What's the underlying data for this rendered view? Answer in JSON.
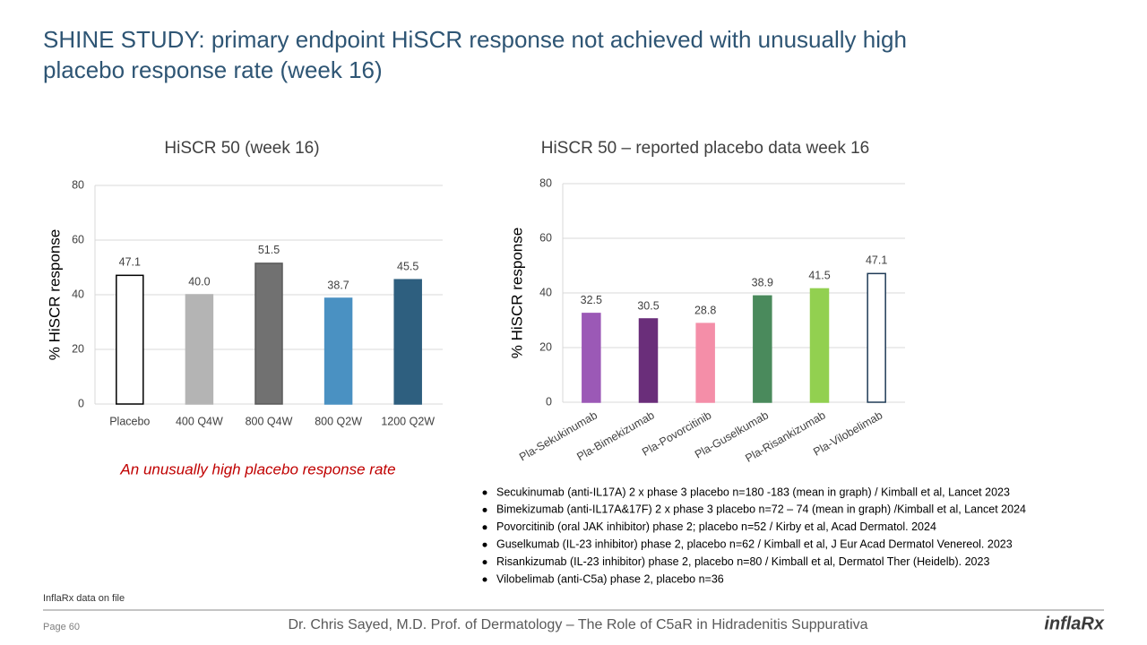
{
  "slide": {
    "title": "SHINE STUDY: primary endpoint HiSCR response not achieved with unusually high placebo response rate (week 16)",
    "callout": "An unusually high placebo response rate",
    "notes": [
      "Secukinumab (anti-IL17A) 2 x phase 3 placebo n=180 -183 (mean in graph) / Kimball et al, Lancet 2023",
      "Bimekizumab (anti-IL17A&17F) 2 x phase 3 placebo n=72 – 74 (mean in graph) /Kimball et al, Lancet 2024",
      "Povorcitinib (oral JAK inhibitor) phase 2; placebo n=52 / Kirby et al,  Acad Dermatol. 2024",
      "Guselkumab (IL-23 inhibitor) phase 2, placebo n=62 / Kimball et al,  J Eur Acad Dermatol Venereol. 2023",
      "Risankizumab (IL-23 inhibitor) phase 2, placebo n=80 / Kimball et al, Dermatol Ther (Heidelb). 2023",
      "Vilobelimab (anti-C5a) phase 2, placebo n=36"
    ],
    "source": "InflaRx data on file",
    "page": "Page 60",
    "footer": "Dr. Chris Sayed, M.D. Prof. of Dermatology – The Role of C5aR in Hidradenitis Suppurativa",
    "logo": "inflaRx"
  },
  "chart_data": [
    {
      "type": "bar",
      "title": "HiSCR 50 (week 16)",
      "y_label": "% HiSCR response",
      "categories": [
        "Placebo",
        "400 Q4W",
        "800 Q4W",
        "800 Q2W",
        "1200 Q2W"
      ],
      "values": [
        47.1,
        40.0,
        51.5,
        38.7,
        45.5
      ],
      "value_labels": [
        "47.1",
        "40.0",
        "51.5",
        "38.7",
        "45.5"
      ],
      "colors": [
        "#ffffff",
        "#b4b4b4",
        "#717171",
        "#4a91c2",
        "#2e5f7f"
      ],
      "edge_colors": [
        "#000000",
        "#b4b4b4",
        "#5a5a5a",
        "#4a91c2",
        "#2e5f7f"
      ],
      "ylim": [
        0,
        80
      ],
      "yticks": [
        0,
        20,
        40,
        60,
        80
      ],
      "grid": true
    },
    {
      "type": "bar",
      "title": "HiSCR 50 – reported placebo data week 16",
      "y_label": "% HiSCR response",
      "categories": [
        "Pla-Sekukinumab",
        "Pla-Bimekizumab",
        "Pla-Povorcitinib",
        "Pla-Guselkumab",
        "Pla-Risankizumab",
        "Pla-Vilobelimab"
      ],
      "values": [
        32.5,
        30.5,
        28.8,
        38.9,
        41.5,
        47.1
      ],
      "value_labels": [
        "32.5",
        "30.5",
        "28.8",
        "38.9",
        "41.5",
        "47.1"
      ],
      "colors": [
        "#9b59b6",
        "#6a2e7a",
        "#f48ea8",
        "#4a8a5c",
        "#92d050",
        "#ffffff"
      ],
      "edge_colors": [
        "#9b59b6",
        "#6a2e7a",
        "#f48ea8",
        "#4a8a5c",
        "#92d050",
        "#1f3b57"
      ],
      "ylim": [
        0,
        80
      ],
      "yticks": [
        0,
        20,
        40,
        60,
        80
      ],
      "grid": true,
      "rotate_labels": true
    }
  ]
}
